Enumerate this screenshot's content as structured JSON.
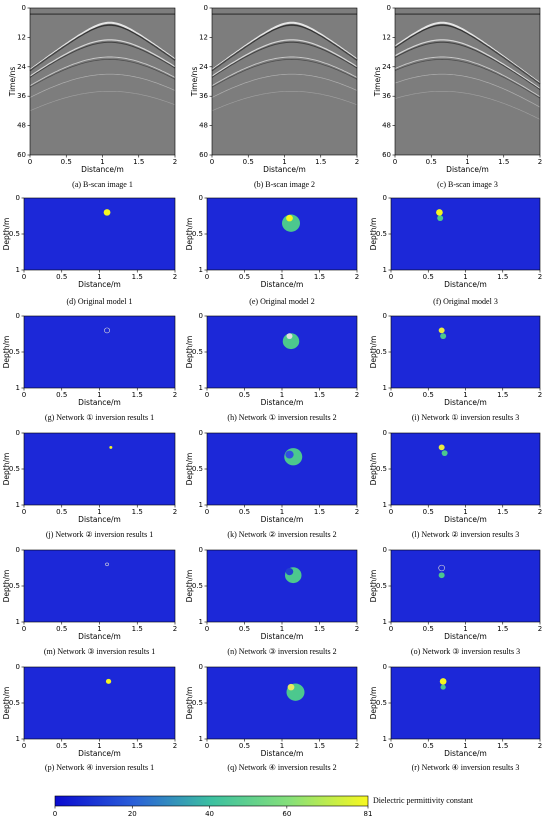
{
  "bscans": {
    "ylabel": "Time/ns",
    "xlabel": "Distance/m",
    "xticks": [
      0,
      0.5,
      1,
      1.5,
      2
    ],
    "yticks": [
      0,
      12,
      24,
      36,
      48,
      60
    ],
    "captions": [
      "(a) B-scan image 1",
      "(b) B-scan image 2",
      "(c) B-scan image 3"
    ]
  },
  "models": {
    "ylabel": "Depth/m",
    "xlabel": "Distance/m",
    "xticks": [
      0,
      0.5,
      1,
      1.5,
      2
    ],
    "yticks": [
      0,
      0.5,
      1
    ],
    "captions": [
      "(d) Original model 1",
      "(e) Original model 2",
      "(f) Original model 3",
      "(g) Network ① inversion results 1",
      "(h) Network ① inversion results 2",
      "(i) Network ① inversion results 3",
      "(j) Network ② inversion results 1",
      "(k) Network ② inversion results 2",
      "(l) Network ② inversion results 3",
      "(m) Network ③ inversion results 1",
      "(n) Network ③ inversion results 2",
      "(o) Network ③ inversion results 3",
      "(p) Network ④ inversion results 1",
      "(q) Network ④ inversion results 2",
      "(r) Network ④ inversion results 3"
    ]
  },
  "colorbar": {
    "label": "Dielectric permittivity constant",
    "ticks": [
      0,
      20,
      40,
      60,
      81
    ]
  }
}
